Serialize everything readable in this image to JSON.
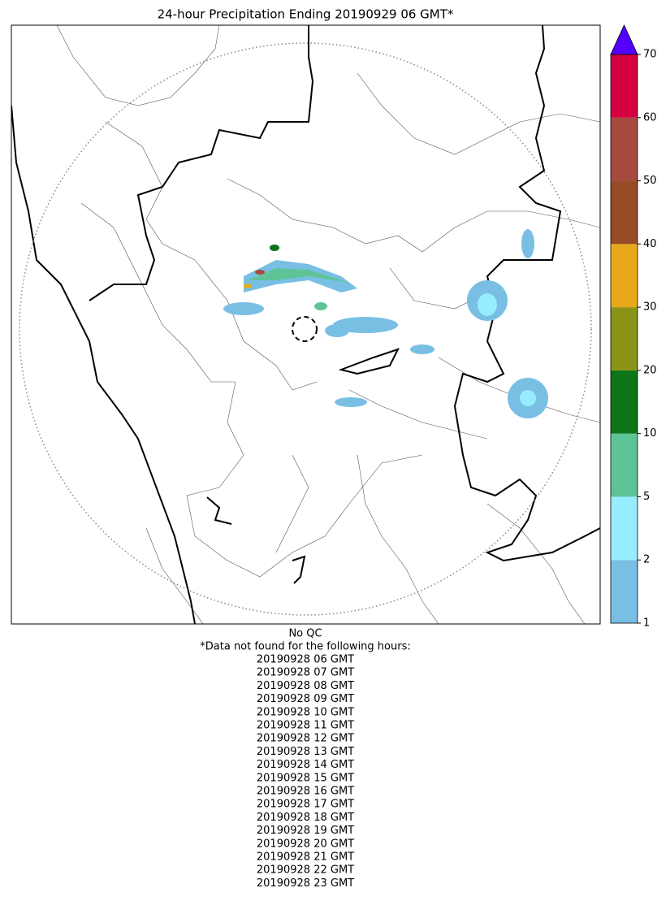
{
  "title": "24-hour Precipitation Ending 20190929 06 GMT*",
  "colorbar": {
    "ticks": [
      1,
      2,
      5,
      10,
      20,
      30,
      40,
      50,
      60,
      70
    ],
    "colors": [
      "#79bfe4",
      "#96edfd",
      "#5ec498",
      "#0d7418",
      "#8b9417",
      "#e7a91a",
      "#994a27",
      "#a54a3f",
      "#d50040"
    ],
    "extend_color": "#5500ff"
  },
  "footer": {
    "qc": "No QC",
    "note": "*Data not found for the following hours:",
    "hours": [
      "20190928 06 GMT",
      "20190928 07 GMT",
      "20190928 08 GMT",
      "20190928 09 GMT",
      "20190928 10 GMT",
      "20190928 11 GMT",
      "20190928 12 GMT",
      "20190928 13 GMT",
      "20190928 14 GMT",
      "20190928 15 GMT",
      "20190928 16 GMT",
      "20190928 17 GMT",
      "20190928 18 GMT",
      "20190928 19 GMT",
      "20190928 20 GMT",
      "20190928 21 GMT",
      "20190928 22 GMT",
      "20190928 23 GMT"
    ]
  }
}
